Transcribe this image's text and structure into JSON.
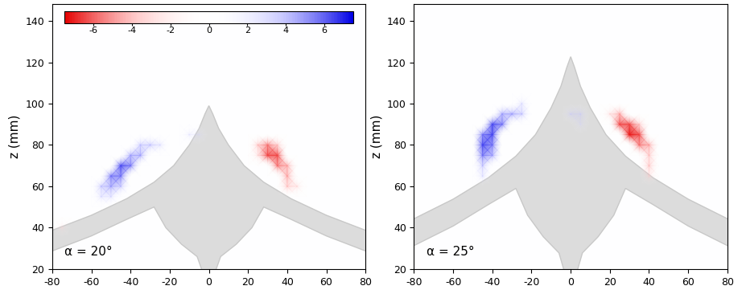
{
  "chart_data": [
    {
      "type": "heatmap",
      "ylabel": "z (mm)",
      "annotation": "α = 20°",
      "xlim": [
        -80,
        80
      ],
      "ylim": [
        20,
        148
      ],
      "xticks": [
        -80,
        -60,
        -40,
        -20,
        0,
        20,
        40,
        60,
        80
      ],
      "yticks": [
        20,
        40,
        60,
        80,
        100,
        120,
        140
      ],
      "colorbar_range": [
        -7.5,
        7.5
      ],
      "colorbar_ticks": [
        -6,
        -4,
        -2,
        0,
        2,
        4,
        6
      ],
      "vorticity": [
        [
          -55,
          55,
          2
        ],
        [
          -55,
          60,
          3
        ],
        [
          -50,
          55,
          2
        ],
        [
          -50,
          60,
          4
        ],
        [
          -50,
          65,
          5
        ],
        [
          -45,
          60,
          3
        ],
        [
          -45,
          65,
          5
        ],
        [
          -45,
          70,
          6
        ],
        [
          -40,
          70,
          5
        ],
        [
          -40,
          75,
          4
        ],
        [
          -35,
          75,
          4
        ],
        [
          -35,
          80,
          3
        ],
        [
          -30,
          80,
          3
        ],
        [
          -25,
          80,
          2
        ],
        [
          -10,
          85,
          1.5
        ],
        [
          -5,
          85,
          1.5
        ],
        [
          25,
          75,
          -2
        ],
        [
          25,
          80,
          -3
        ],
        [
          30,
          80,
          -5
        ],
        [
          30,
          75,
          -6
        ],
        [
          35,
          75,
          -6
        ],
        [
          35,
          80,
          -3
        ],
        [
          35,
          70,
          -5
        ],
        [
          40,
          70,
          -4
        ],
        [
          40,
          65,
          -4
        ],
        [
          40,
          60,
          -3
        ],
        [
          45,
          60,
          -2
        ],
        [
          -75,
          40,
          -1.5
        ]
      ]
    },
    {
      "type": "heatmap",
      "ylabel": "z (mm)",
      "annotation": "α = 25°",
      "xlim": [
        -80,
        80
      ],
      "ylim": [
        20,
        148
      ],
      "xticks": [
        -80,
        -60,
        -40,
        -20,
        0,
        20,
        40,
        60,
        80
      ],
      "yticks": [
        20,
        40,
        60,
        80,
        100,
        120,
        140
      ],
      "colorbar_range": [
        -7.5,
        7.5
      ],
      "vorticity": [
        [
          -45,
          65,
          2
        ],
        [
          -45,
          70,
          3
        ],
        [
          -45,
          75,
          5
        ],
        [
          -45,
          80,
          6
        ],
        [
          -45,
          85,
          5
        ],
        [
          -40,
          75,
          4
        ],
        [
          -40,
          80,
          5
        ],
        [
          -40,
          85,
          6
        ],
        [
          -40,
          90,
          6
        ],
        [
          -35,
          90,
          5
        ],
        [
          -35,
          95,
          4
        ],
        [
          -30,
          95,
          4
        ],
        [
          -25,
          95,
          3
        ],
        [
          -25,
          100,
          2
        ],
        [
          0,
          95,
          2
        ],
        [
          5,
          95,
          2
        ],
        [
          5,
          90,
          1.5
        ],
        [
          20,
          95,
          -2
        ],
        [
          25,
          95,
          -4
        ],
        [
          25,
          90,
          -6
        ],
        [
          30,
          90,
          -6
        ],
        [
          30,
          85,
          -7
        ],
        [
          35,
          90,
          -3
        ],
        [
          35,
          85,
          -6
        ],
        [
          35,
          80,
          -5
        ],
        [
          40,
          80,
          -4
        ],
        [
          40,
          75,
          -3
        ],
        [
          40,
          70,
          -3
        ],
        [
          40,
          65,
          -2
        ]
      ]
    }
  ]
}
